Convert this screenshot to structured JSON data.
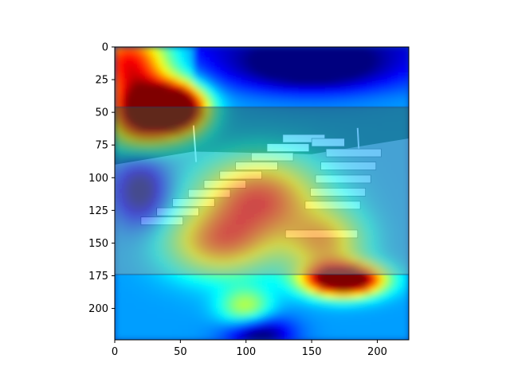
{
  "chart_data": {
    "type": "heatmap",
    "title": "",
    "xlabel": "",
    "ylabel": "",
    "xlim": [
      0,
      224
    ],
    "ylim": [
      224,
      0
    ],
    "x_ticks": [
      0,
      50,
      100,
      150,
      200
    ],
    "y_ticks": [
      0,
      25,
      50,
      75,
      100,
      125,
      150,
      175,
      200
    ],
    "colormap": "jet",
    "colormap_stops": [
      "#00007f",
      "#0000ff",
      "#007fff",
      "#00ffff",
      "#7fff7f",
      "#ffff00",
      "#ff7f00",
      "#ff0000",
      "#7f0000"
    ],
    "image_region": {
      "y_from": 46,
      "y_to": 174
    },
    "image_content": "aerial photo of parked white utility bucket trucks in a lot",
    "hotspots": [
      {
        "x": 47,
        "y": 47,
        "intensity": 1.0,
        "sx": 22,
        "sy": 18
      },
      {
        "x": 20,
        "y": 50,
        "intensity": 0.75,
        "sx": 25,
        "sy": 25
      },
      {
        "x": 10,
        "y": 10,
        "intensity": 0.55,
        "sx": 30,
        "sy": 25
      },
      {
        "x": 175,
        "y": 178,
        "intensity": 1.0,
        "sx": 28,
        "sy": 12
      },
      {
        "x": 110,
        "y": 115,
        "intensity": 0.55,
        "sx": 45,
        "sy": 30
      },
      {
        "x": 80,
        "y": 150,
        "intensity": 0.45,
        "sx": 40,
        "sy": 25
      },
      {
        "x": 160,
        "y": 150,
        "intensity": 0.4,
        "sx": 30,
        "sy": 25
      },
      {
        "x": 100,
        "y": 200,
        "intensity": 0.3,
        "sx": 20,
        "sy": 15
      }
    ],
    "coldspots": [
      {
        "x": 150,
        "y": 15,
        "sx": 60,
        "sy": 20
      },
      {
        "x": 110,
        "y": 220,
        "sx": 25,
        "sy": 15
      },
      {
        "x": 20,
        "y": 110,
        "sx": 20,
        "sy": 25
      }
    ]
  }
}
